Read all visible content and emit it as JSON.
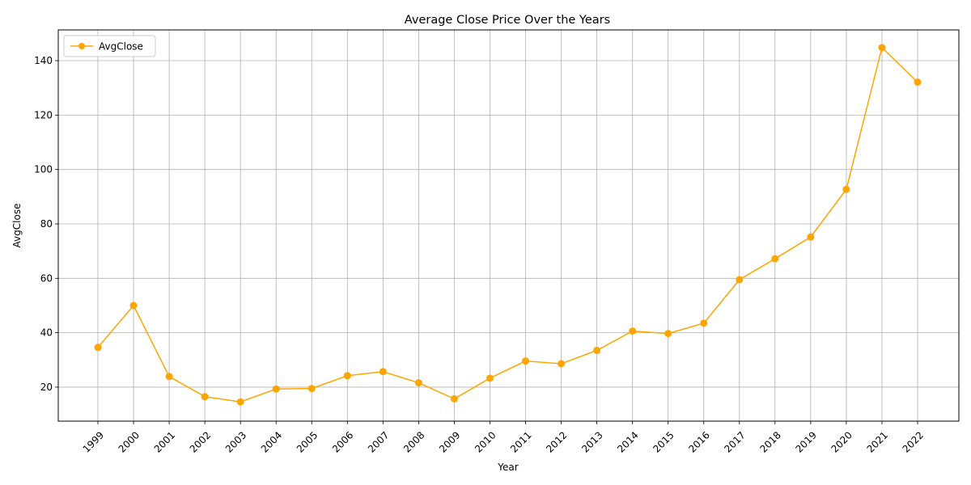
{
  "chart_data": {
    "type": "line",
    "title": "Average Close Price Over the Years",
    "xlabel": "Year",
    "ylabel": "AvgClose",
    "categories": [
      "1999",
      "2000",
      "2001",
      "2002",
      "2003",
      "2004",
      "2005",
      "2006",
      "2007",
      "2008",
      "2009",
      "2010",
      "2011",
      "2012",
      "2013",
      "2014",
      "2015",
      "2016",
      "2017",
      "2018",
      "2019",
      "2020",
      "2021",
      "2022"
    ],
    "series": [
      {
        "name": "AvgClose",
        "color": "#FFA500",
        "values": [
          34.6,
          50.0,
          23.9,
          16.5,
          14.6,
          19.3,
          19.5,
          24.2,
          25.7,
          21.6,
          15.7,
          23.3,
          29.6,
          28.6,
          33.5,
          40.6,
          39.7,
          43.5,
          59.5,
          67.2,
          75.2,
          92.7,
          144.8,
          132.1
        ]
      }
    ],
    "ylim": [
      7.5,
      151.3
    ],
    "yticks": [
      20,
      40,
      60,
      80,
      100,
      120,
      140
    ],
    "grid": true,
    "legend_position": "top-left",
    "marker": "circle"
  }
}
